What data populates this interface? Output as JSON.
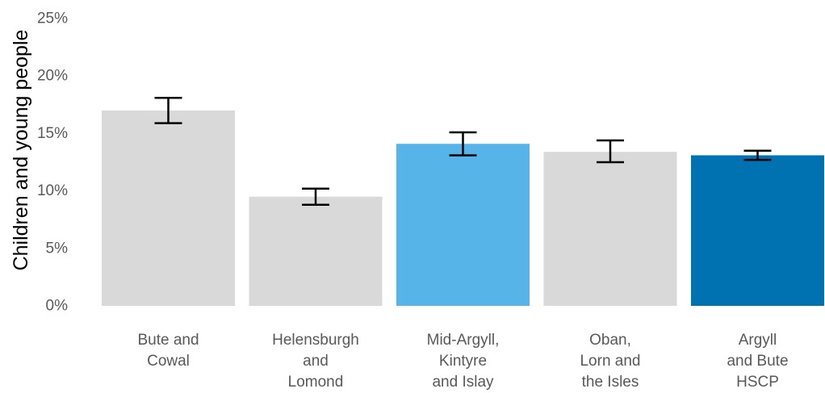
{
  "chart_data": {
    "type": "bar",
    "ylabel": "Children and young people",
    "y_ticks": [
      "0%",
      "5%",
      "10%",
      "15%",
      "20%",
      "25%"
    ],
    "ylim": [
      0,
      25
    ],
    "grid": false,
    "categories": [
      [
        "Bute and",
        "Cowal"
      ],
      [
        "Helensburgh",
        "and",
        "Lomond"
      ],
      [
        "Mid-Argyll,",
        "Kintyre",
        "and Islay"
      ],
      [
        "Oban,",
        "Lorn and",
        "the Isles"
      ],
      [
        "Argyll",
        "and Bute",
        "HSCP"
      ]
    ],
    "values": [
      17.0,
      9.5,
      14.1,
      13.4,
      13.1
    ],
    "error_low": [
      15.9,
      8.8,
      13.1,
      12.5,
      12.7
    ],
    "error_high": [
      18.1,
      10.2,
      15.1,
      14.4,
      13.5
    ],
    "colors": [
      "#d9d9d9",
      "#d9d9d9",
      "#56b4e9",
      "#d9d9d9",
      "#0072b2"
    ],
    "error_bar_color": "#000000"
  }
}
